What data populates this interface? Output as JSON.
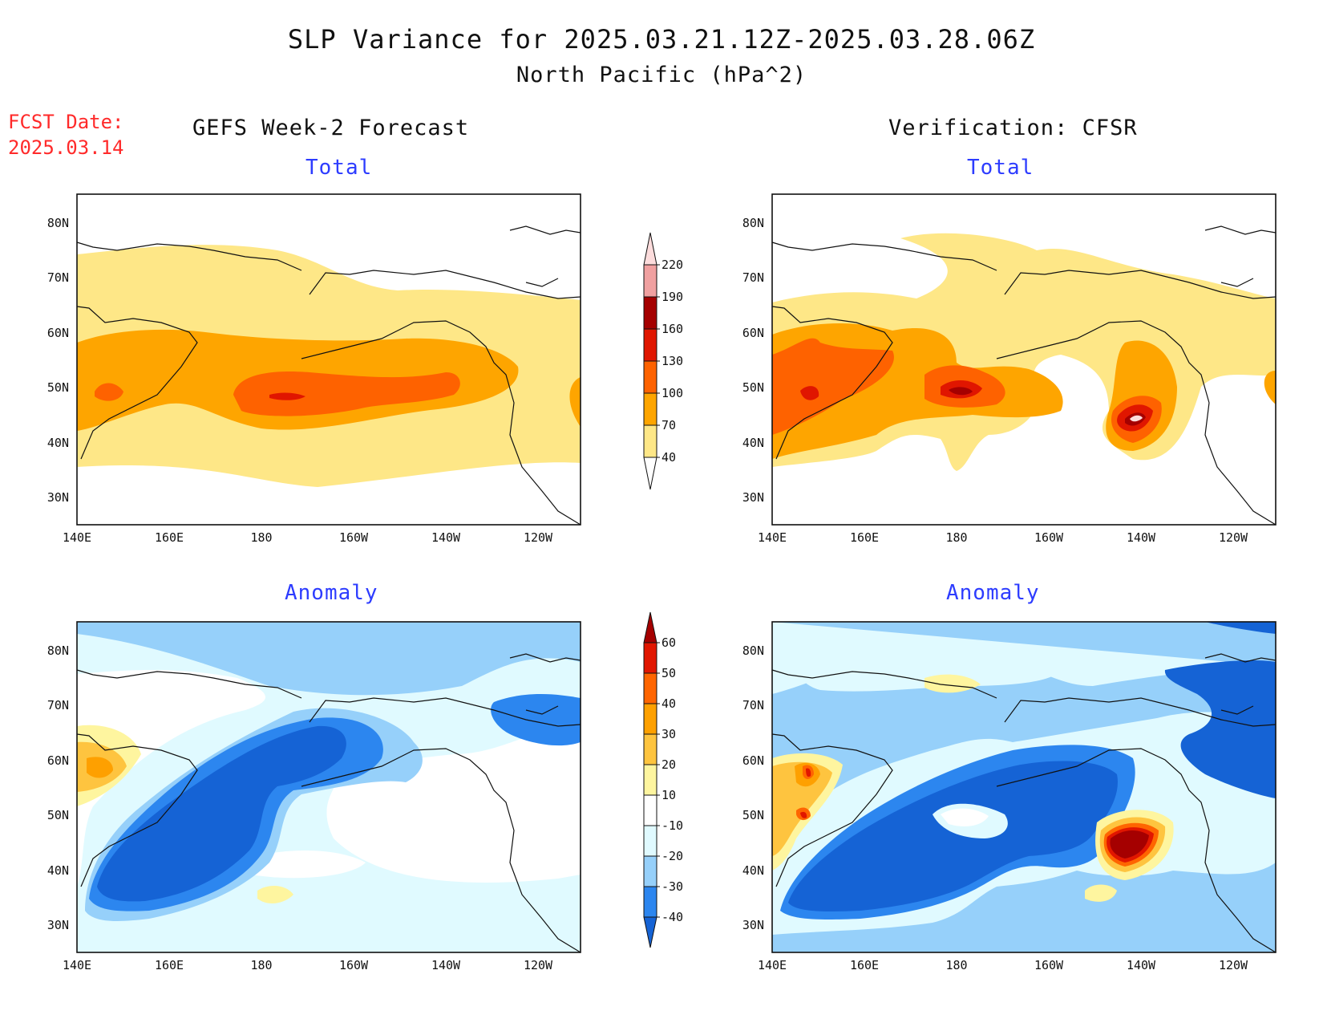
{
  "header": {
    "title": "SLP Variance for 2025.03.21.12Z-2025.03.28.06Z",
    "subtitle": "North Pacific (hPa^2)",
    "fcst_label": "FCST Date:",
    "fcst_date": "2025.03.14"
  },
  "columns": {
    "left": "GEFS Week-2 Forecast",
    "right": "Verification: CFSR"
  },
  "rows": {
    "top": "Total",
    "bottom": "Anomaly"
  },
  "axes": {
    "lat_ticks": [
      "80N",
      "70N",
      "60N",
      "50N",
      "40N",
      "30N"
    ],
    "lon_ticks": [
      "140E",
      "160E",
      "180",
      "160W",
      "140W",
      "120W"
    ]
  },
  "colorbars": {
    "total": {
      "levels": [
        "40",
        "70",
        "100",
        "130",
        "160",
        "190",
        "220"
      ],
      "colors": [
        "#fee787",
        "#fea500",
        "#fe6200",
        "#e01600",
        "#a50000",
        "#f0a0a0",
        "#fcdcdc"
      ]
    },
    "anomaly": {
      "levels": [
        "-40",
        "-30",
        "-20",
        "-10",
        "10",
        "20",
        "30",
        "40",
        "50",
        "60"
      ],
      "colors": [
        "#1563d5",
        "#2c86ef",
        "#96d0fa",
        "#e0faff",
        "#ffffff",
        "#fef59f",
        "#fec43f",
        "#fea000",
        "#ff6500",
        "#e11600",
        "#a50000"
      ]
    }
  },
  "chart_data": [
    {
      "type": "heatmap",
      "title": "GEFS Week-2 Forecast - Total",
      "units": "hPa^2",
      "max_center": "~47N 175W",
      "peak_range": "130-160"
    },
    {
      "type": "heatmap",
      "title": "Verification: CFSR - Total",
      "units": "hPa^2",
      "max_center": "~42N 137W",
      "peak_range": "190-220"
    },
    {
      "type": "heatmap",
      "title": "GEFS Week-2 Forecast - Anomaly",
      "units": "hPa^2",
      "min_range": "below -40",
      "max_range": "20-30"
    },
    {
      "type": "heatmap",
      "title": "Verification: CFSR - Anomaly",
      "units": "hPa^2",
      "min_range": "below -40",
      "max_range": "above 60"
    }
  ]
}
